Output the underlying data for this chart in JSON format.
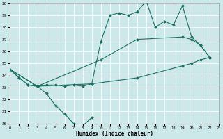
{
  "bg_color": "#cde8e8",
  "grid_color": "#ffffff",
  "line_color": "#1a7060",
  "xlabel": "Humidex (Indice chaleur)",
  "xlim": [
    0,
    23
  ],
  "ylim": [
    20,
    30
  ],
  "xticks": [
    0,
    1,
    2,
    3,
    4,
    5,
    6,
    7,
    8,
    9,
    10,
    11,
    12,
    13,
    14,
    15,
    16,
    17,
    18,
    19,
    20,
    21,
    22,
    23
  ],
  "yticks": [
    20,
    21,
    22,
    23,
    24,
    25,
    26,
    27,
    28,
    29,
    30
  ],
  "curve1_x": [
    0,
    1,
    2,
    3,
    4,
    5,
    6,
    7,
    8,
    9
  ],
  "curve1_y": [
    24.5,
    23.8,
    23.2,
    23.1,
    22.5,
    21.5,
    20.8,
    20.0,
    19.8,
    20.5
  ],
  "curve2_x": [
    0,
    1,
    2,
    3,
    4,
    5,
    6,
    7,
    8,
    9,
    10,
    11,
    12,
    13,
    14,
    15,
    16,
    17,
    18,
    19,
    20,
    21,
    22
  ],
  "curve2_y": [
    24.5,
    23.8,
    23.2,
    23.1,
    23.2,
    23.2,
    23.1,
    23.2,
    23.1,
    23.3,
    26.8,
    29.0,
    29.2,
    29.0,
    29.3,
    30.2,
    28.0,
    28.5,
    28.2,
    29.8,
    27.2,
    26.5,
    25.5
  ],
  "curve3_x": [
    0,
    3,
    10,
    14,
    19,
    20,
    21,
    22
  ],
  "curve3_y": [
    24.5,
    23.1,
    25.3,
    27.0,
    27.2,
    27.0,
    26.5,
    25.5
  ],
  "curve4_x": [
    0,
    3,
    9,
    14,
    19,
    20,
    21,
    22
  ],
  "curve4_y": [
    24.5,
    23.1,
    23.3,
    23.8,
    24.8,
    25.0,
    25.3,
    25.5
  ],
  "msize": 1.5,
  "lw": 0.8
}
